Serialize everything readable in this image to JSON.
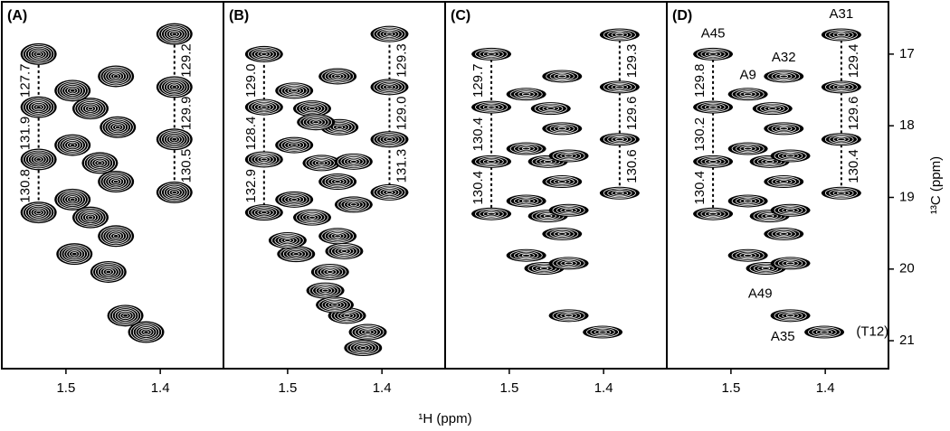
{
  "x_label": "¹H (ppm)",
  "chart_data": [
    {
      "type": "contour",
      "panel_label": "(A)",
      "contours": "broad",
      "xlim": [
        1.568,
        1.333
      ],
      "ylim": [
        21.39,
        16.27
      ],
      "xticks": [
        1.5,
        1.4
      ],
      "peaks": {
        "x": [
          1.529,
          1.529,
          1.529,
          1.529,
          1.385,
          1.385,
          1.385,
          1.385,
          1.493,
          1.474,
          1.447,
          1.445,
          1.493,
          1.464,
          1.447,
          1.493,
          1.474,
          1.447,
          1.491,
          1.455,
          1.437,
          1.415
        ],
        "y": [
          17.0,
          17.74,
          18.47,
          19.21,
          16.72,
          17.46,
          18.19,
          18.93,
          17.51,
          17.76,
          17.31,
          18.02,
          18.27,
          18.52,
          18.78,
          19.03,
          19.28,
          19.54,
          19.79,
          20.04,
          20.65,
          20.88
        ]
      },
      "couplings": [
        {
          "label": "127.7",
          "x": 1.529,
          "y": [
            17.0,
            17.74
          ]
        },
        {
          "label": "131.9",
          "x": 1.529,
          "y": [
            17.74,
            18.47
          ]
        },
        {
          "label": "130.8",
          "x": 1.529,
          "y": [
            18.47,
            19.21
          ]
        },
        {
          "label": "129.2",
          "x": 1.385,
          "y": [
            16.72,
            17.46
          ]
        },
        {
          "label": "129.9",
          "x": 1.385,
          "y": [
            17.46,
            18.19
          ]
        },
        {
          "label": "130.5",
          "x": 1.385,
          "y": [
            18.19,
            18.93
          ]
        }
      ],
      "labels": []
    },
    {
      "type": "contour",
      "panel_label": "(B)",
      "contours": "medium",
      "xlim": [
        1.568,
        1.333
      ],
      "ylim": [
        21.39,
        16.27
      ],
      "xticks": [
        1.5,
        1.4
      ],
      "peaks": {
        "x": [
          1.525,
          1.525,
          1.525,
          1.525,
          1.392,
          1.392,
          1.392,
          1.392,
          1.493,
          1.474,
          1.447,
          1.445,
          1.493,
          1.464,
          1.447,
          1.493,
          1.474,
          1.447,
          1.491,
          1.455,
          1.437,
          1.415,
          1.47,
          1.43,
          1.43,
          1.5,
          1.44,
          1.46,
          1.45,
          1.42
        ],
        "y": [
          17.0,
          17.74,
          18.47,
          19.21,
          16.72,
          17.46,
          18.19,
          18.93,
          17.51,
          17.76,
          17.31,
          18.02,
          18.27,
          18.52,
          18.78,
          19.03,
          19.28,
          19.54,
          19.79,
          20.04,
          20.65,
          20.88,
          17.95,
          18.5,
          19.1,
          19.6,
          19.75,
          20.3,
          20.5,
          21.1
        ]
      },
      "couplings": [
        {
          "label": "129.0",
          "x": 1.525,
          "y": [
            17.0,
            17.74
          ]
        },
        {
          "label": "128.4",
          "x": 1.525,
          "y": [
            17.74,
            18.47
          ]
        },
        {
          "label": "132.9",
          "x": 1.525,
          "y": [
            18.47,
            19.21
          ]
        },
        {
          "label": "129.3",
          "x": 1.392,
          "y": [
            16.72,
            17.46
          ]
        },
        {
          "label": "129.0",
          "x": 1.392,
          "y": [
            17.46,
            18.19
          ]
        },
        {
          "label": "131.3",
          "x": 1.392,
          "y": [
            18.19,
            18.93
          ]
        }
      ],
      "labels": []
    },
    {
      "type": "contour",
      "panel_label": "(C)",
      "contours": "sharp",
      "xlim": [
        1.568,
        1.333
      ],
      "ylim": [
        21.39,
        16.27
      ],
      "xticks": [
        1.5,
        1.4
      ],
      "peaks": {
        "x": [
          1.519,
          1.519,
          1.519,
          1.519,
          1.383,
          1.383,
          1.383,
          1.383,
          1.444,
          1.482,
          1.456,
          1.444,
          1.482,
          1.459,
          1.437,
          1.444,
          1.482,
          1.459,
          1.437,
          1.444,
          1.482,
          1.463,
          1.437,
          1.437,
          1.401
        ],
        "y": [
          17.0,
          17.74,
          18.5,
          19.23,
          16.73,
          17.46,
          18.19,
          18.94,
          17.31,
          17.56,
          17.76,
          18.04,
          18.32,
          18.5,
          18.42,
          18.78,
          19.05,
          19.26,
          19.18,
          19.51,
          19.81,
          19.99,
          19.92,
          20.65,
          20.88
        ]
      },
      "couplings": [
        {
          "label": "129.7",
          "x": 1.519,
          "y": [
            17.0,
            17.74
          ]
        },
        {
          "label": "130.4",
          "x": 1.519,
          "y": [
            17.74,
            18.5
          ]
        },
        {
          "label": "130.4",
          "x": 1.519,
          "y": [
            18.5,
            19.23
          ]
        },
        {
          "label": "129.3",
          "x": 1.383,
          "y": [
            16.73,
            17.46
          ]
        },
        {
          "label": "129.6",
          "x": 1.383,
          "y": [
            17.46,
            18.19
          ]
        },
        {
          "label": "130.6",
          "x": 1.383,
          "y": [
            18.19,
            18.94
          ]
        }
      ],
      "labels": []
    },
    {
      "type": "contour",
      "panel_label": "(D)",
      "contours": "sharp",
      "xlim": [
        1.568,
        1.333
      ],
      "ylim": [
        21.39,
        16.27
      ],
      "xticks": [
        1.5,
        1.4
      ],
      "yticks": [
        17,
        18,
        19,
        20,
        21
      ],
      "ylabel": "¹³C (ppm)",
      "peaks": {
        "x": [
          1.519,
          1.519,
          1.519,
          1.519,
          1.383,
          1.383,
          1.383,
          1.383,
          1.444,
          1.482,
          1.456,
          1.444,
          1.482,
          1.459,
          1.437,
          1.444,
          1.482,
          1.459,
          1.437,
          1.444,
          1.482,
          1.463,
          1.437,
          1.437,
          1.401
        ],
        "y": [
          17.0,
          17.74,
          18.5,
          19.23,
          16.73,
          17.46,
          18.19,
          18.94,
          17.31,
          17.56,
          17.76,
          18.04,
          18.32,
          18.5,
          18.42,
          18.78,
          19.05,
          19.26,
          19.18,
          19.51,
          19.81,
          19.99,
          19.92,
          20.65,
          20.88
        ]
      },
      "couplings": [
        {
          "label": "129.8",
          "x": 1.519,
          "y": [
            17.0,
            17.74
          ]
        },
        {
          "label": "130.2",
          "x": 1.519,
          "y": [
            17.74,
            18.5
          ]
        },
        {
          "label": "130.4",
          "x": 1.519,
          "y": [
            18.5,
            19.23
          ]
        },
        {
          "label": "129.4",
          "x": 1.383,
          "y": [
            16.73,
            17.46
          ]
        },
        {
          "label": "129.6",
          "x": 1.383,
          "y": [
            17.46,
            18.19
          ]
        },
        {
          "label": "130.4",
          "x": 1.383,
          "y": [
            18.19,
            18.94
          ]
        }
      ],
      "labels": [
        {
          "text": "A45",
          "x": 1.519,
          "y": 16.72
        },
        {
          "text": "A31",
          "x": 1.383,
          "y": 16.45
        },
        {
          "text": "A32",
          "x": 1.444,
          "y": 17.05
        },
        {
          "text": "A9",
          "x": 1.482,
          "y": 17.3
        },
        {
          "text": "A49",
          "x": 1.469,
          "y": 20.35
        },
        {
          "text": "A35",
          "x": 1.445,
          "y": 20.95
        },
        {
          "text": "(T12)",
          "x": 1.35,
          "y": 20.88
        }
      ]
    }
  ]
}
